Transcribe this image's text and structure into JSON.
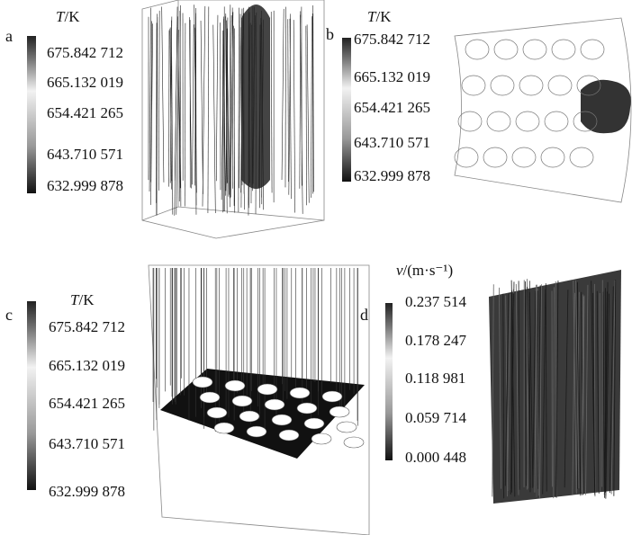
{
  "panels": [
    {
      "label": "a",
      "title": {
        "symbol": "T",
        "unit": "/K"
      },
      "ticks": [
        "675.842 712",
        "665.132 019",
        "654.421 265",
        "643.710 571",
        "632.999 878"
      ]
    },
    {
      "label": "b",
      "title": {
        "symbol": "T",
        "unit": "/K"
      },
      "ticks": [
        "675.842 712",
        "665.132 019",
        "654.421 265",
        "643.710 571",
        "632.999 878"
      ]
    },
    {
      "label": "c",
      "title": {
        "symbol": "T",
        "unit": "/K"
      },
      "ticks": [
        "675.842 712",
        "665.132 019",
        "654.421 265",
        "643.710 571",
        "632.999 878"
      ]
    },
    {
      "label": "d",
      "title": {
        "symbol": "v",
        "unit": "/(m·s⁻¹)"
      },
      "ticks": [
        "0.237 514",
        "0.178 247",
        "0.118 981",
        "0.059 714",
        "0.000 448"
      ]
    }
  ]
}
